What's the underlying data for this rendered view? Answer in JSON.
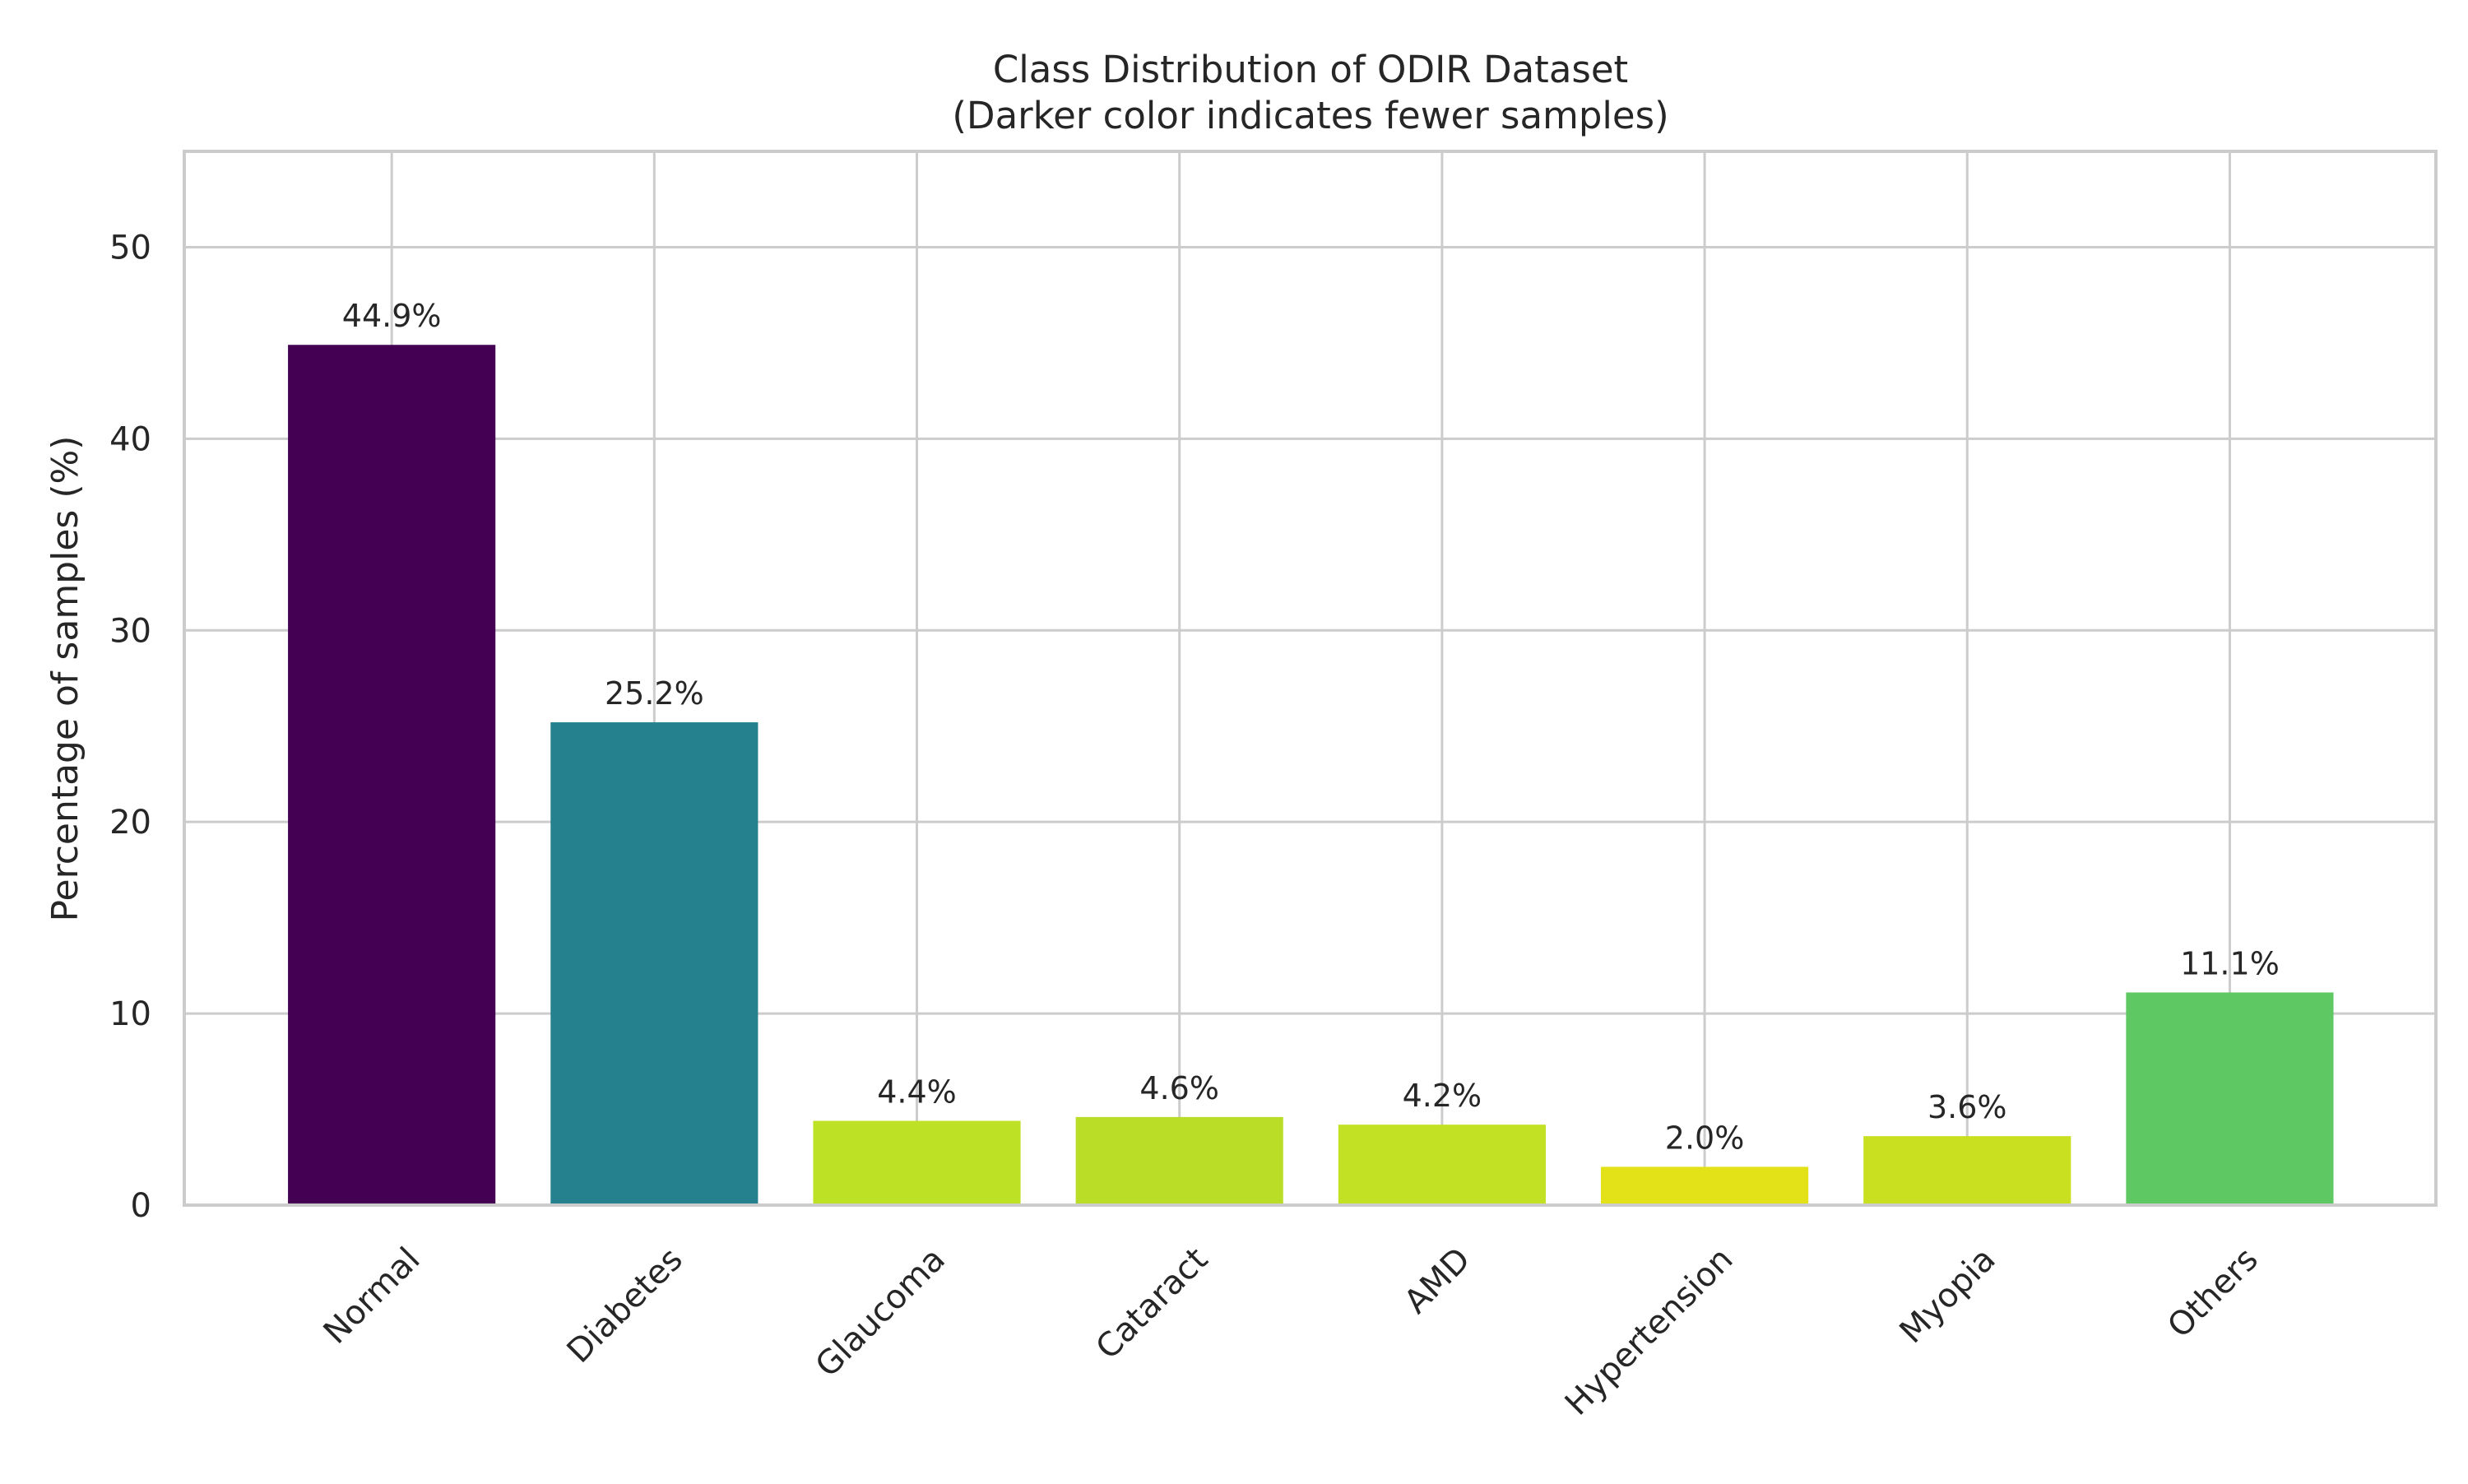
{
  "chart_data": {
    "type": "bar",
    "title": "Class Distribution of ODIR Dataset",
    "subtitle": "(Darker color indicates fewer samples)",
    "xlabel": "",
    "ylabel": "Percentage of samples (%)",
    "ylim": [
      0,
      55
    ],
    "yticks": [
      0,
      10,
      20,
      30,
      40,
      50
    ],
    "grid": true,
    "categories": [
      "Normal",
      "Diabetes",
      "Glaucoma",
      "Cataract",
      "AMD",
      "Hypertension",
      "Myopia",
      "Others"
    ],
    "values": [
      44.9,
      25.2,
      4.4,
      4.6,
      4.2,
      2.0,
      3.6,
      11.1
    ],
    "value_labels": [
      "44.9%",
      "25.2%",
      "4.4%",
      "4.6%",
      "4.2%",
      "2.0%",
      "3.6%",
      "11.1%"
    ],
    "colors": [
      "#440154",
      "#26818e",
      "#bde125",
      "#bade28",
      "#c2e024",
      "#e3e218",
      "#c8e01f",
      "#5ec962"
    ]
  },
  "style": {
    "grid_color": "#cccccc",
    "frame_color": "#cccccc",
    "text_color": "#262626"
  }
}
